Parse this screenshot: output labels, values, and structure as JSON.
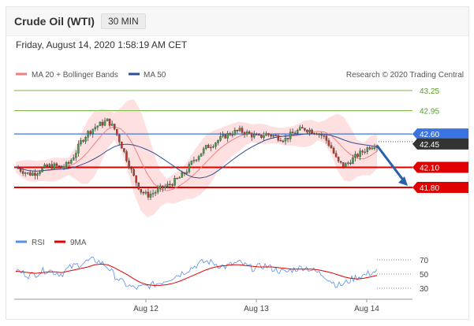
{
  "header": {
    "instrument": "Crude Oil (WTI)",
    "timeframe": "30 MIN",
    "datetime": "Friday, August 14, 2020 1:58:19 AM CET"
  },
  "credit": "Research © 2020 Trading Central",
  "colors": {
    "resistance_line": "#3b74e0",
    "support_line": "#e00000",
    "target_line": "#7ab648",
    "ma50": "#2d4f99",
    "bollinger_fill": "#ffd6d6",
    "ma20": "#f07f7f",
    "arrow": "#2a5fb0",
    "rsi": "#5b8ee6",
    "rsi_ma": "#e00000"
  },
  "chart_data": [
    {
      "type": "candlestick",
      "legend": [
        {
          "name": "MA 20 + Bollinger Bands",
          "color": "#f07f7f",
          "icon": "line-swatch"
        },
        {
          "name": "MA 50",
          "color": "#2d4f99",
          "icon": "line-swatch"
        }
      ],
      "x_ticks": [
        "Aug 12",
        "Aug 13",
        "Aug 14"
      ],
      "ylim": [
        41.45,
        43.4
      ],
      "current_price": "42.45",
      "levels": [
        {
          "label": "43.25",
          "value": 43.25,
          "kind": "target"
        },
        {
          "label": "42.95",
          "value": 42.95,
          "kind": "target"
        },
        {
          "label": "42.60",
          "value": 42.6,
          "kind": "resistance"
        },
        {
          "label": "42.10",
          "value": 42.1,
          "kind": "support"
        },
        {
          "label": "41.80",
          "value": 41.8,
          "kind": "support"
        }
      ],
      "forecast_arrow": {
        "from": 42.45,
        "to": 41.8,
        "direction": "down"
      },
      "close_path": [
        42.1,
        42.05,
        42.0,
        42.02,
        42.08,
        42.12,
        42.12,
        42.1,
        42.15,
        42.3,
        42.5,
        42.62,
        42.7,
        42.75,
        42.8,
        42.68,
        42.45,
        42.2,
        41.95,
        41.75,
        41.68,
        41.72,
        41.78,
        41.82,
        41.88,
        41.95,
        42.05,
        42.2,
        42.3,
        42.4,
        42.45,
        42.52,
        42.58,
        42.62,
        42.65,
        42.62,
        42.58,
        42.55,
        42.6,
        42.58,
        42.55,
        42.52,
        42.6,
        42.65,
        42.68,
        42.65,
        42.62,
        42.55,
        42.4,
        42.18,
        42.12,
        42.2,
        42.28,
        42.35,
        42.42,
        42.45
      ]
    },
    {
      "type": "line",
      "legend": [
        {
          "name": "RSI",
          "color": "#5b8ee6",
          "icon": "line-swatch"
        },
        {
          "name": "9MA",
          "color": "#e00000",
          "icon": "line-swatch"
        }
      ],
      "y_ticks": [
        70,
        50,
        30
      ],
      "ylim": [
        25,
        75
      ],
      "x_ticks": [
        "Aug 12",
        "Aug 13",
        "Aug 14"
      ],
      "series": [
        {
          "name": "RSI",
          "values": [
            55,
            52,
            48,
            50,
            54,
            56,
            52,
            50,
            58,
            62,
            65,
            68,
            70,
            66,
            60,
            48,
            40,
            34,
            30,
            31,
            33,
            35,
            38,
            42,
            46,
            50,
            55,
            60,
            65,
            68,
            66,
            62,
            60,
            64,
            66,
            62,
            58,
            60,
            62,
            58,
            55,
            52,
            56,
            58,
            60,
            56,
            52,
            48,
            40,
            34,
            36,
            42,
            46,
            48,
            52,
            54
          ]
        },
        {
          "name": "9MA",
          "values": [
            54,
            53,
            52,
            51,
            52,
            53,
            53,
            52,
            54,
            56,
            58,
            60,
            63,
            64,
            63,
            59,
            54,
            49,
            43,
            38,
            35,
            34,
            34,
            35,
            37,
            40,
            44,
            48,
            52,
            56,
            59,
            61,
            62,
            63,
            63,
            62,
            61,
            60,
            60,
            60,
            59,
            58,
            57,
            57,
            57,
            57,
            56,
            54,
            52,
            49,
            46,
            44,
            43,
            44,
            46,
            48
          ]
        }
      ]
    }
  ]
}
